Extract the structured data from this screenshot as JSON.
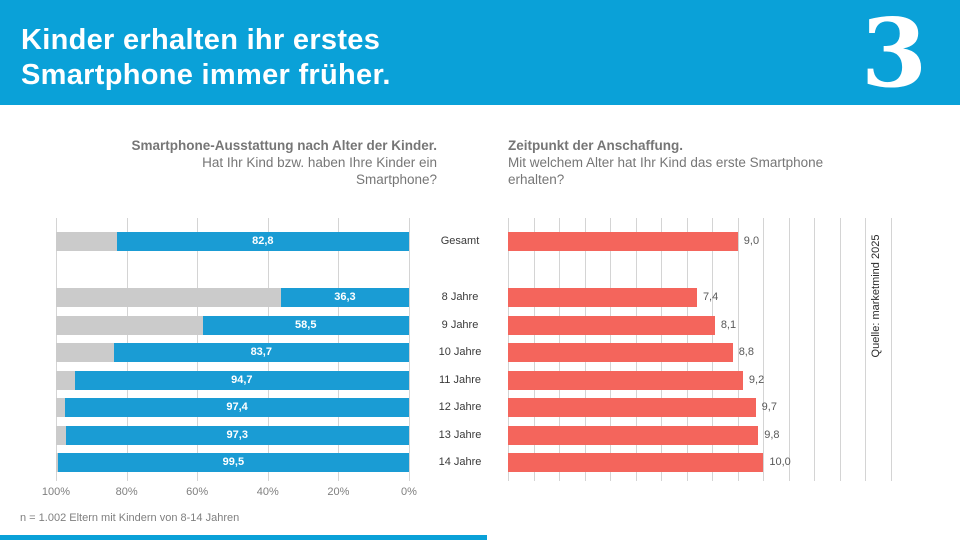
{
  "colors": {
    "brand_cyan": "#0aa1d8",
    "bar_blue": "#1a9cd4",
    "bar_track_gray": "#cbcbcb",
    "bar_red": "#f4655c",
    "gridline": "#d4d4d4",
    "title_gray": "#767676",
    "value_white": "#ffffff",
    "value_gray": "#595959"
  },
  "header": {
    "title_line1": "Kinder erhalten ihr erstes",
    "title_line2": "Smartphone immer früher.",
    "logo_glyph": "3"
  },
  "left_section": {
    "title": "Smartphone-Ausstattung nach Alter der Kinder.",
    "subtitle_line1": "Hat Ihr Kind bzw. haben Ihre Kinder ein",
    "subtitle_line2": "Smartphone?"
  },
  "right_section": {
    "title": "Zeitpunkt der Anschaffung.",
    "subtitle": "Mit welchem Alter hat Ihr Kind das erste Smartphone erhalten?"
  },
  "categories": [
    "Gesamt",
    "8 Jahre",
    "9 Jahre",
    "10 Jahre",
    "11 Jahre",
    "12 Jahre",
    "13 Jahre",
    "14 Jahre"
  ],
  "chart_data": [
    {
      "type": "bar",
      "orientation": "horizontal",
      "title": "Smartphone-Ausstattung nach Alter der Kinder.",
      "subtitle": "Hat Ihr Kind bzw. haben Ihre Kinder ein Smartphone?",
      "categories": [
        "Gesamt",
        "8 Jahre",
        "9 Jahre",
        "10 Jahre",
        "11 Jahre",
        "12 Jahre",
        "13 Jahre",
        "14 Jahre"
      ],
      "values": [
        82.8,
        36.3,
        58.5,
        83.7,
        94.7,
        97.4,
        97.3,
        99.5
      ],
      "value_labels": [
        "82,8",
        "36,3",
        "58,5",
        "83,7",
        "94,7",
        "97,4",
        "97,3",
        "99,5"
      ],
      "unit": "%",
      "xlim": [
        100,
        0
      ],
      "axis_reversed": true,
      "tick_labels": [
        "100%",
        "80%",
        "60%",
        "40%",
        "20%",
        "0%"
      ],
      "grid": true,
      "bar_color": "#1a9cd4",
      "remainder_color": "#cbcbcb",
      "value_label_position": "inside-center"
    },
    {
      "type": "bar",
      "orientation": "horizontal",
      "title": "Zeitpunkt der Anschaffung.",
      "subtitle": "Mit welchem Alter hat Ihr Kind das erste Smartphone erhalten?",
      "categories": [
        "Gesamt",
        "8 Jahre",
        "9 Jahre",
        "10 Jahre",
        "11 Jahre",
        "12 Jahre",
        "13 Jahre",
        "14 Jahre"
      ],
      "values": [
        9.0,
        7.4,
        8.1,
        8.8,
        9.2,
        9.7,
        9.8,
        10.0
      ],
      "value_labels": [
        "9,0",
        "7,4",
        "8,1",
        "8,8",
        "9,2",
        "9,7",
        "9,8",
        "10,0"
      ],
      "unit": "Jahre",
      "xlim": [
        0,
        15
      ],
      "gridline_step": 1,
      "grid": true,
      "bar_color": "#f4655c",
      "value_label_position": "outside-right"
    }
  ],
  "source_note": "Quelle: marketmind 2025",
  "footnote": "n = 1.002 Eltern mit Kindern von 8-14 Jahren"
}
